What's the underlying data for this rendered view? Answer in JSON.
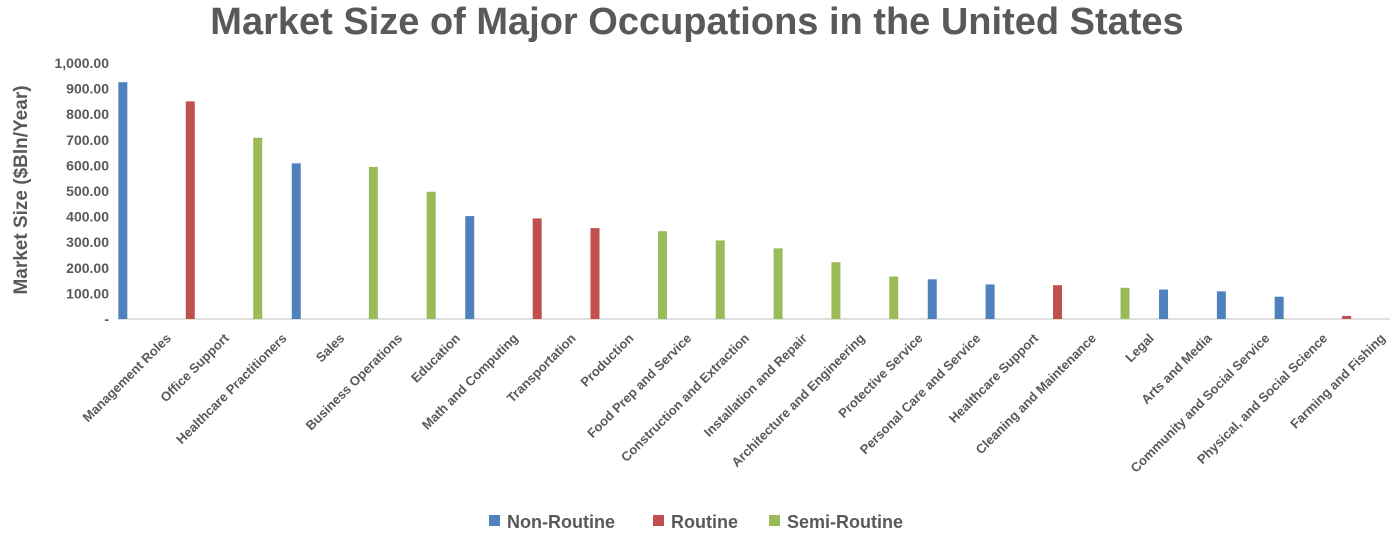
{
  "chart_data": {
    "type": "bar",
    "title": "Market Size of Major Occupations in the United States",
    "ylabel": "Market Size ($Bln/Year)",
    "xlabel": "",
    "ylim": [
      0,
      1000
    ],
    "yticks": [
      {
        "value": 0,
        "label": "-"
      },
      {
        "value": 100,
        "label": "100.00"
      },
      {
        "value": 200,
        "label": "200.00"
      },
      {
        "value": 300,
        "label": "300.00"
      },
      {
        "value": 400,
        "label": "400.00"
      },
      {
        "value": 500,
        "label": "500.00"
      },
      {
        "value": 600,
        "label": "600.00"
      },
      {
        "value": 700,
        "label": "700.00"
      },
      {
        "value": 800,
        "label": "800.00"
      },
      {
        "value": 900,
        "label": "900.00"
      },
      {
        "value": 1000,
        "label": "1,000.00"
      }
    ],
    "grid": false,
    "legend_position": "bottom",
    "categories": [
      "Management Roles",
      "Office Support",
      "Healthcare Practitioners",
      "Sales",
      "Business Operations",
      "Education",
      "Math and Computing",
      "Transportation",
      "Production",
      "Food Prep and Service",
      "Construction and Extraction",
      "Installation and Repair",
      "Architecture and Engineering",
      "Protective Service",
      "Personal Care and Service",
      "Healthcare Support",
      "Cleaning and Maintenance",
      "Legal",
      "Arts and Media",
      "Community and Social Service",
      "Physical, and Social Science",
      "Farming and Fishing"
    ],
    "series": [
      {
        "name": "Non-Routine",
        "color": "#4f81bd",
        "values": [
          925,
          null,
          null,
          608,
          null,
          null,
          402,
          null,
          null,
          null,
          null,
          null,
          null,
          null,
          155,
          135,
          null,
          null,
          115,
          108,
          87,
          null
        ]
      },
      {
        "name": "Routine",
        "color": "#c0504d",
        "values": [
          null,
          850,
          null,
          null,
          null,
          null,
          null,
          393,
          355,
          null,
          null,
          null,
          null,
          null,
          null,
          null,
          132,
          null,
          null,
          null,
          null,
          12
        ]
      },
      {
        "name": "Semi-Routine",
        "color": "#9bbb59",
        "values": [
          null,
          null,
          708,
          null,
          594,
          497,
          null,
          null,
          null,
          343,
          307,
          276,
          222,
          166,
          null,
          null,
          null,
          122,
          null,
          null,
          null,
          null
        ]
      }
    ]
  }
}
